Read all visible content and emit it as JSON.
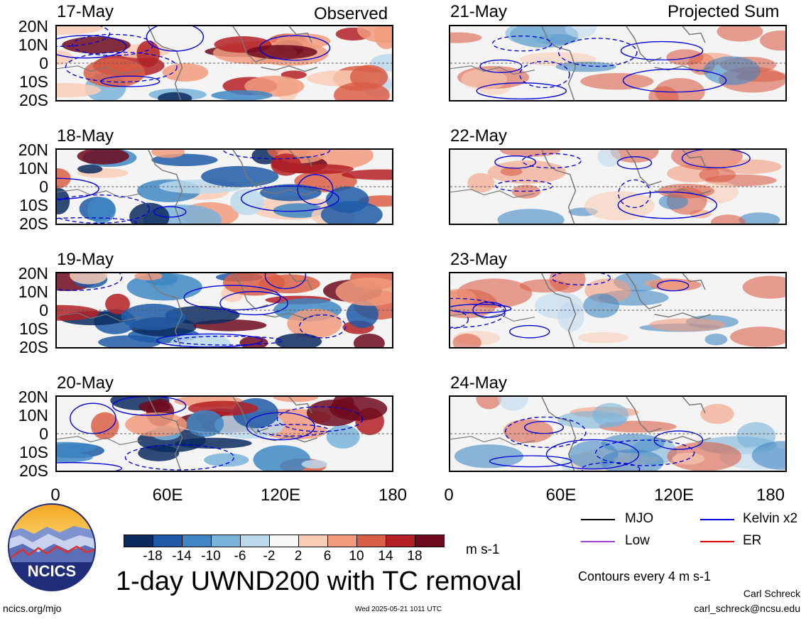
{
  "header": {
    "left_label": "Observed",
    "right_label": "Projected Sum"
  },
  "panels": {
    "observed": [
      "17-May",
      "18-May",
      "19-May",
      "20-May"
    ],
    "projected": [
      "21-May",
      "22-May",
      "23-May",
      "24-May"
    ]
  },
  "lat_labels": [
    "20N",
    "10N",
    "0",
    "10S",
    "20S"
  ],
  "lon_labels": [
    "0",
    "60E",
    "120E",
    "180"
  ],
  "colorbar": {
    "labels": [
      "-18",
      "-14",
      "-10",
      "-6",
      "-2",
      "2",
      "6",
      "10",
      "14",
      "18"
    ],
    "colors": [
      "#0b2a5e",
      "#1f5aa6",
      "#3f87c3",
      "#7ab3d9",
      "#bcd9ec",
      "#f7f7f7",
      "#f9cdb5",
      "#f19b7c",
      "#d95f47",
      "#b42025",
      "#6e0a1e"
    ],
    "units": "m s-1"
  },
  "legend": {
    "items": [
      {
        "label": "MJO",
        "color": "#000000"
      },
      {
        "label": "Kelvin x2",
        "color": "#0000dd"
      },
      {
        "label": "Low",
        "color": "#a040d0"
      },
      {
        "label": "ER",
        "color": "#e00000"
      }
    ],
    "contour_note": "Contours every 4 m s-1"
  },
  "title": "1-day UWND200 with TC removal",
  "footer": {
    "left": "ncics.org/mjo",
    "center": "Wed 2025-05-21 1011 UTC",
    "author": "Carl Schreck",
    "email": "carl_schreck@ncsu.edu"
  },
  "logo": {
    "text": "NCICS"
  }
}
